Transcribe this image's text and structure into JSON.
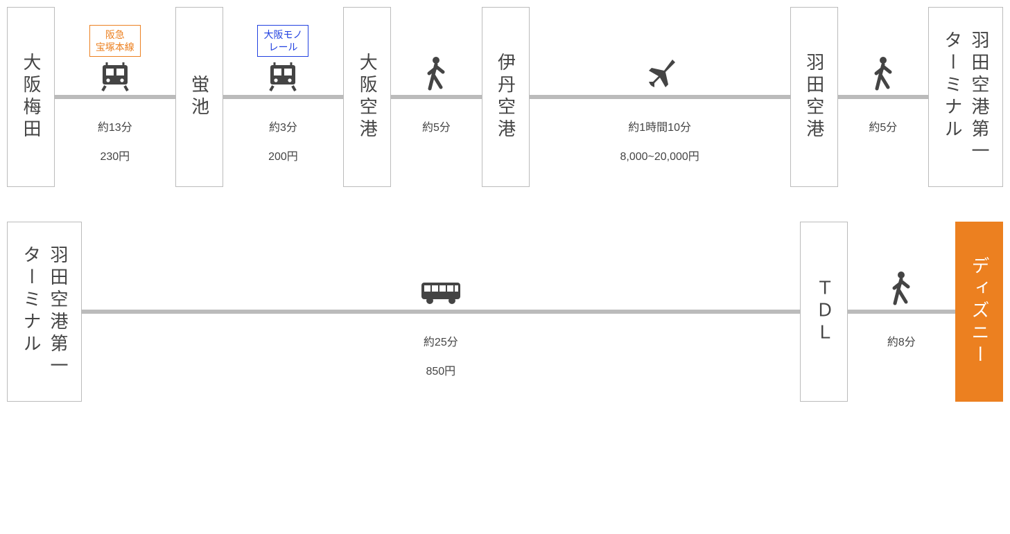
{
  "colors": {
    "station_border": "#bbbbbb",
    "station_text": "#444444",
    "line": "#bbbbbb",
    "icon": "#444444",
    "dest_bg": "#ec8020",
    "dest_text": "#ffffff",
    "info_text": "#444444"
  },
  "fonts": {
    "station_size": 26,
    "info_size": 16,
    "badge_size": 14
  },
  "rows": [
    {
      "stations": [
        {
          "label": "大阪梅田",
          "dest": false
        },
        {
          "label": "蛍池",
          "dest": false
        },
        {
          "label": "大阪空港",
          "dest": false
        },
        {
          "label": "伊丹空港",
          "dest": false
        },
        {
          "label": "羽田空港",
          "dest": false
        },
        {
          "label": "羽田空港第一\nターミナル",
          "dest": false
        }
      ],
      "segments": [
        {
          "mode": "train",
          "line_label": "阪急\n宝塚本線",
          "line_color": "#ec8020",
          "duration": "約13分",
          "fare": "230円",
          "flex": 1.2
        },
        {
          "mode": "train",
          "line_label": "大阪モノ\nレール",
          "line_color": "#2040e0",
          "duration": "約3分",
          "fare": "200円",
          "flex": 1.2
        },
        {
          "mode": "walk",
          "duration": "約5分",
          "flex": 0.9
        },
        {
          "mode": "plane",
          "duration": "約1時間10分",
          "fare": "8,000~20,000円",
          "flex": 2.6
        },
        {
          "mode": "walk",
          "duration": "約5分",
          "flex": 0.9
        }
      ]
    },
    {
      "stations": [
        {
          "label": "羽田空港第一\nターミナル",
          "dest": false
        },
        {
          "label": "ＴＤＬ",
          "dest": false
        },
        {
          "label": "ディズニー",
          "dest": true
        }
      ],
      "segments": [
        {
          "mode": "bus",
          "duration": "約25分",
          "fare": "850円",
          "flex": 8
        },
        {
          "mode": "walk",
          "duration": "約8分",
          "flex": 1.2
        }
      ]
    }
  ]
}
